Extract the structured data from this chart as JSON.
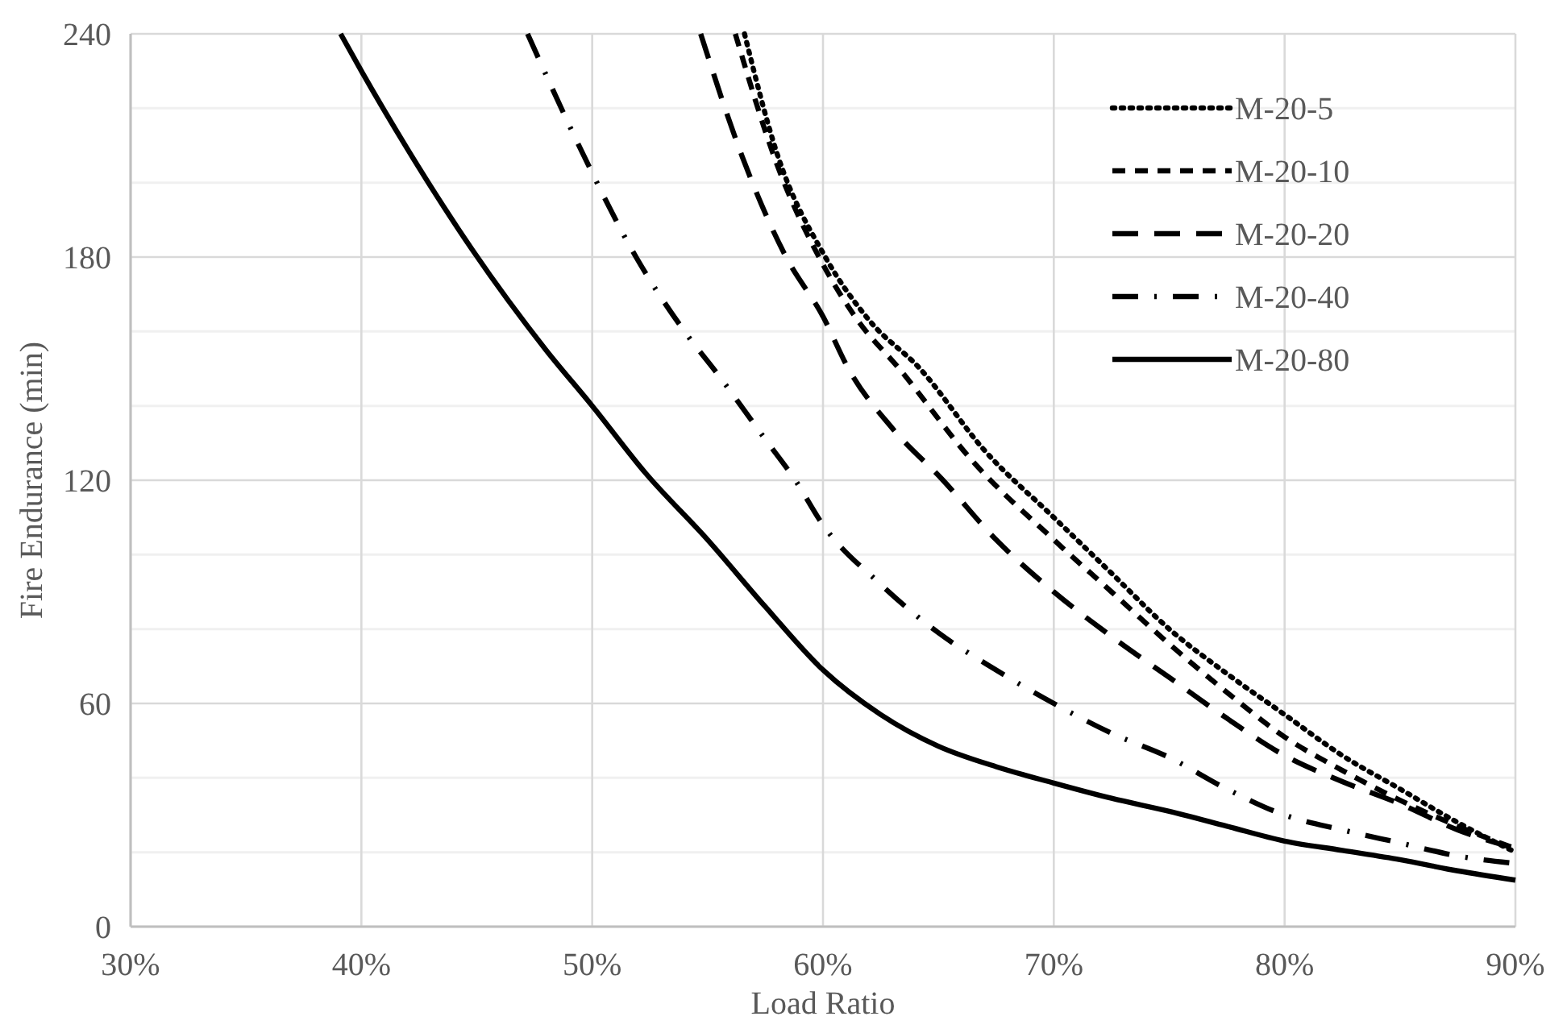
{
  "chart_data": {
    "type": "line",
    "xlabel": "Load Ratio",
    "ylabel": "Fire Endurance (min)",
    "xlim": [
      30,
      90
    ],
    "xticks": [
      {
        "value": 30,
        "label": "30%"
      },
      {
        "value": 40,
        "label": "40%"
      },
      {
        "value": 50,
        "label": "50%"
      },
      {
        "value": 60,
        "label": "60%"
      },
      {
        "value": 70,
        "label": "70%"
      },
      {
        "value": 80,
        "label": "80%"
      },
      {
        "value": 90,
        "label": "90%"
      }
    ],
    "ylim": [
      0,
      240
    ],
    "yticks": [
      0,
      {
        "value": 20,
        "label": null
      },
      {
        "value": 40,
        "label": null
      },
      60,
      {
        "value": 80,
        "label": null
      },
      {
        "value": 100,
        "label": null
      },
      120,
      {
        "value": 140,
        "label": null
      },
      {
        "value": 160,
        "label": null
      },
      180,
      {
        "value": 200,
        "label": null
      },
      {
        "value": 220,
        "label": null
      },
      240
    ],
    "grid": true,
    "legend": "top right",
    "marker": "none",
    "series": [
      {
        "name": "M-20-5",
        "color": "#000000",
        "line_style": "dotted",
        "x": [
          56.6,
          58,
          60.1,
          62,
          64.2,
          67,
          70,
          72.5,
          75,
          77.5,
          80,
          82.5,
          85,
          87.5,
          90
        ],
        "values": [
          240,
          208,
          180,
          163,
          150,
          128,
          110,
          95,
          80,
          68,
          57,
          46,
          37,
          28,
          20
        ]
      },
      {
        "name": "M-20-10",
        "color": "#000000",
        "line_style": "dashed",
        "x": [
          56.2,
          58,
          60,
          61.5,
          63.3,
          66.5,
          70,
          72.5,
          75,
          77.5,
          80,
          82.5,
          85,
          87.5,
          90
        ],
        "values": [
          240,
          205,
          178,
          163,
          150,
          125,
          104,
          90,
          76,
          63,
          51,
          42,
          34,
          27,
          21
        ]
      },
      {
        "name": "M-20-20",
        "color": "#000000",
        "line_style": "longdash",
        "x": [
          54.7,
          56.5,
          58.4,
          60,
          61.1,
          63,
          65.2,
          67.5,
          70,
          72.5,
          75,
          77.5,
          80,
          82.5,
          85,
          87.5,
          90
        ],
        "values": [
          240,
          207,
          180,
          164,
          150,
          134,
          120,
          104,
          90,
          78,
          67,
          56,
          46,
          39,
          33,
          26,
          21
        ]
      },
      {
        "name": "M-20-40",
        "color": "#000000",
        "line_style": "dashdot",
        "x": [
          47.2,
          49.5,
          51.9,
          54,
          55.5,
          57.5,
          58.8,
          60,
          62.5,
          65,
          67.5,
          70,
          72.5,
          75,
          77.5,
          80,
          82.5,
          85,
          87.5,
          90
        ],
        "values": [
          240,
          209,
          180,
          160,
          148,
          131,
          120,
          108,
          92,
          79,
          69,
          60,
          52,
          45.5,
          37,
          30,
          26,
          22.5,
          19,
          17
        ]
      },
      {
        "name": "M-20-80",
        "color": "#000000",
        "line_style": "solid",
        "x": [
          39.1,
          40,
          42,
          44.8,
          48,
          50,
          52.3,
          55,
          57.5,
          60,
          62.5,
          65,
          67.5,
          70,
          72.5,
          75,
          77.5,
          80,
          82.5,
          85,
          87.5,
          90
        ],
        "values": [
          240,
          230,
          209,
          182,
          155,
          140,
          122,
          104,
          86,
          69,
          57,
          48.5,
          43,
          38.6,
          34.5,
          31,
          27,
          23,
          20.5,
          18,
          15,
          12.5
        ]
      }
    ]
  }
}
